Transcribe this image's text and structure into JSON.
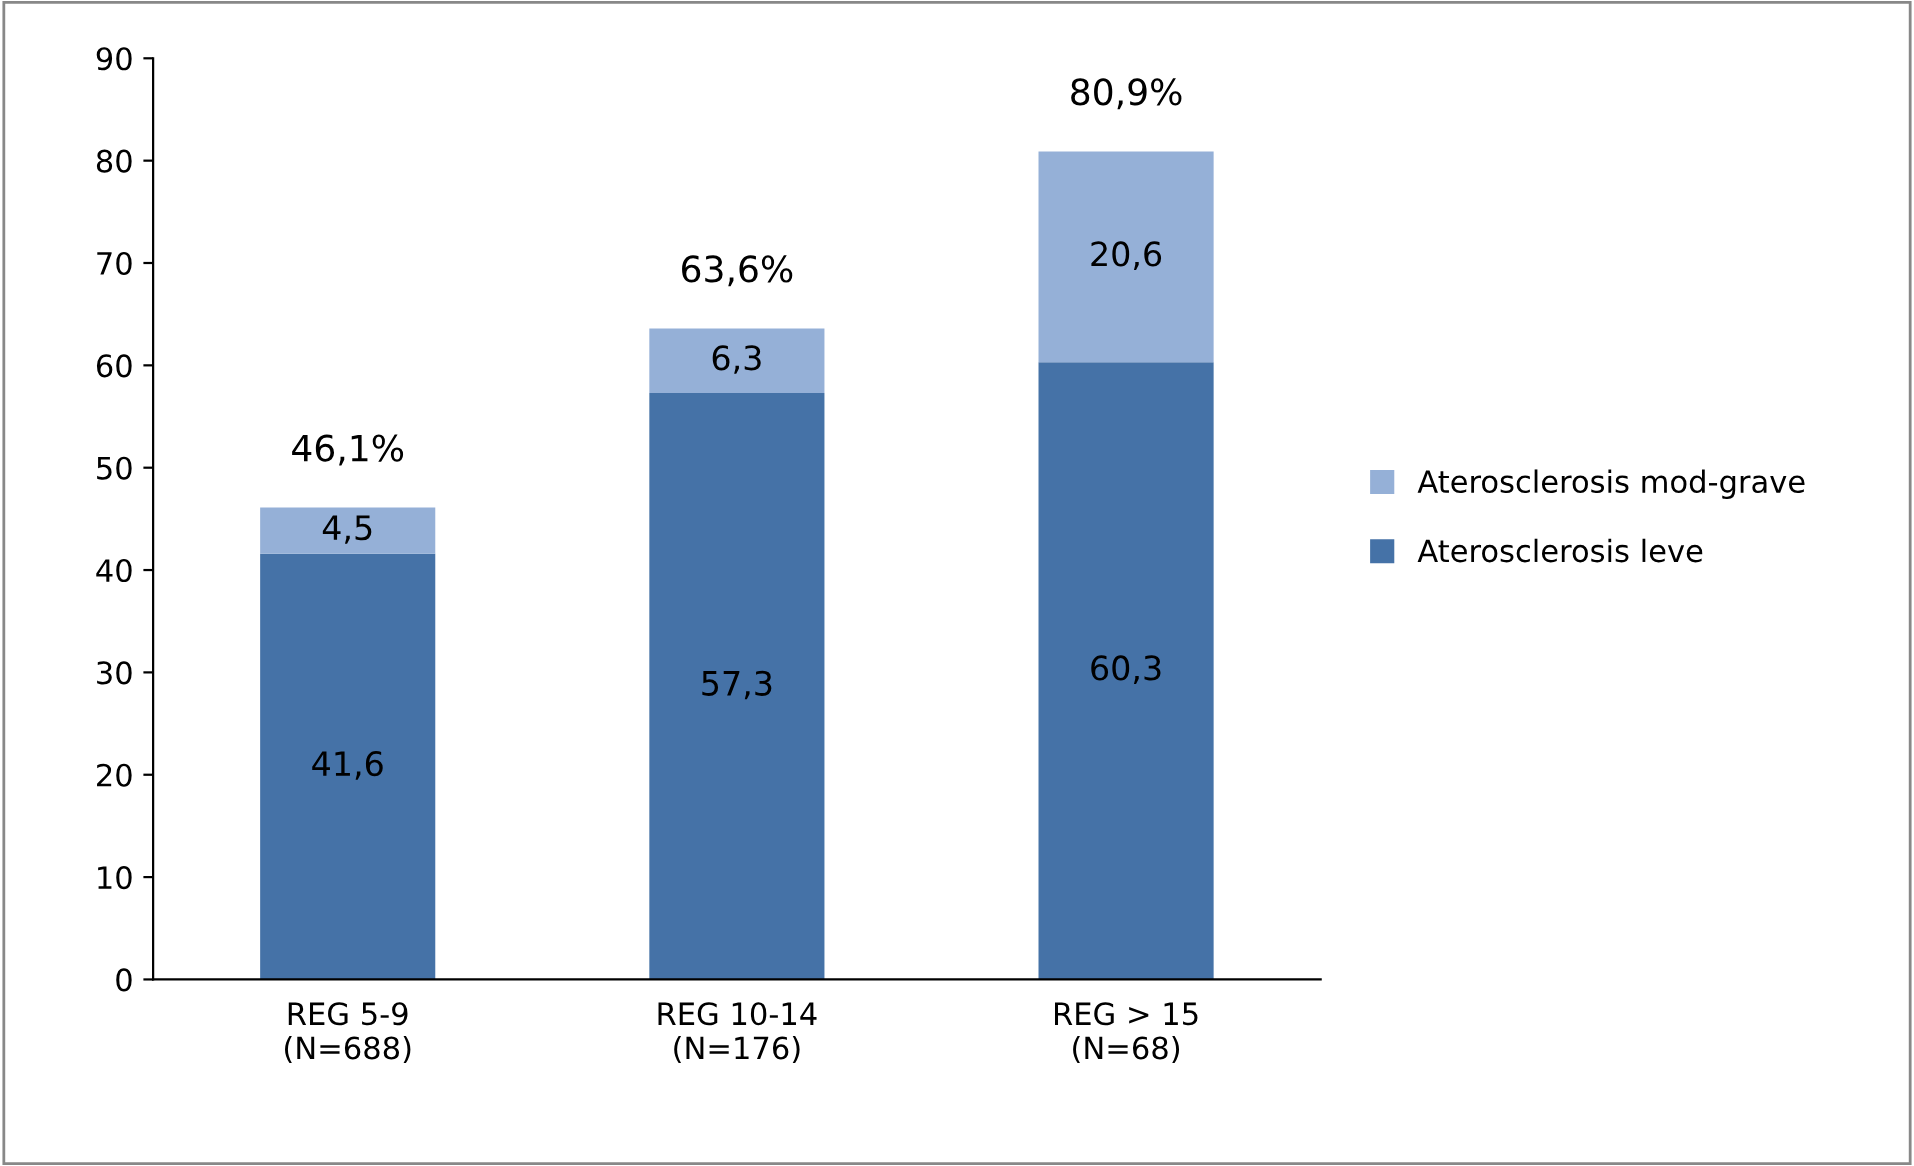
{
  "chart_data": {
    "type": "bar",
    "stacked": true,
    "categories": [
      "REG 5-9\n(N=688)",
      "REG 10-14\n(N=176)",
      "REG > 15\n(N=68)"
    ],
    "series": [
      {
        "name": "Aterosclerosis leve",
        "color": "#4572a7",
        "values": [
          41.6,
          57.3,
          60.3
        ],
        "value_labels": [
          "41,6",
          "57,3",
          "60,3"
        ]
      },
      {
        "name": "Aterosclerosis mod-grave",
        "color": "#95b0d7",
        "values": [
          4.5,
          6.3,
          20.6
        ],
        "value_labels": [
          "4,5",
          "6,3",
          "20,6"
        ]
      }
    ],
    "totals": [
      "46,1%",
      "63,6%",
      "80,9%"
    ],
    "ylim": [
      0,
      90
    ],
    "yticks": [
      0,
      10,
      20,
      30,
      40,
      50,
      60,
      70,
      80,
      90
    ],
    "grid": false,
    "legend": "right"
  }
}
